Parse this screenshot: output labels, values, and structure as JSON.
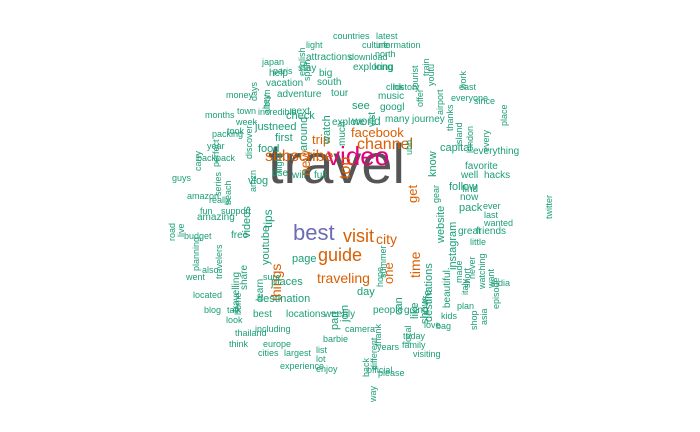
{
  "colors": {
    "grey": "#555555",
    "pink": "#e6007e",
    "purple": "#6b6bb8",
    "orange": "#d95f02",
    "teal": "#1b9e77"
  },
  "words": [
    {
      "text": "travel",
      "color": "grey"
    },
    {
      "text": "video",
      "color": "pink"
    },
    {
      "text": "best",
      "color": "purple"
    },
    {
      "text": "visit",
      "color": "orange"
    },
    {
      "text": "city",
      "color": "orange"
    },
    {
      "text": "guide",
      "color": "orange"
    },
    {
      "text": "channel",
      "color": "orange"
    },
    {
      "text": "subscribe",
      "color": "orange"
    },
    {
      "text": "traveling",
      "color": "orange"
    },
    {
      "text": "facebook",
      "color": "orange"
    },
    {
      "text": "top",
      "color": "orange"
    },
    {
      "text": "trip",
      "color": "orange"
    },
    {
      "text": "things",
      "color": "orange"
    },
    {
      "text": "time",
      "color": "orange"
    },
    {
      "text": "new",
      "color": "orange"
    },
    {
      "text": "get",
      "color": "orange"
    },
    {
      "text": "one",
      "color": "orange"
    },
    {
      "text": "world",
      "color": "teal"
    },
    {
      "text": "watch",
      "color": "teal"
    },
    {
      "text": "see",
      "color": "teal"
    },
    {
      "text": "googl",
      "color": "teal"
    },
    {
      "text": "check",
      "color": "teal"
    },
    {
      "text": "first",
      "color": "teal"
    },
    {
      "text": "food",
      "color": "teal"
    },
    {
      "text": "need",
      "color": "teal"
    },
    {
      "text": "just",
      "color": "teal"
    },
    {
      "text": "around",
      "color": "teal"
    },
    {
      "text": "youtube",
      "color": "teal"
    },
    {
      "text": "tips",
      "color": "teal"
    },
    {
      "text": "vlog",
      "color": "teal"
    },
    {
      "text": "videos",
      "color": "teal"
    },
    {
      "text": "will",
      "color": "teal"
    },
    {
      "text": "full",
      "color": "teal"
    },
    {
      "text": "use",
      "color": "teal"
    },
    {
      "text": "website",
      "color": "teal"
    },
    {
      "text": "instagram",
      "color": "teal"
    },
    {
      "text": "destinations",
      "color": "teal"
    },
    {
      "text": "follow",
      "color": "teal"
    },
    {
      "text": "know",
      "color": "teal"
    },
    {
      "text": "capital",
      "color": "teal"
    },
    {
      "text": "pack",
      "color": "teal"
    },
    {
      "text": "now",
      "color": "teal"
    },
    {
      "text": "life",
      "color": "teal"
    },
    {
      "text": "like",
      "color": "teal"
    },
    {
      "text": "show",
      "color": "teal"
    },
    {
      "text": "can",
      "color": "teal"
    },
    {
      "text": "day",
      "color": "teal"
    },
    {
      "text": "join",
      "color": "teal"
    },
    {
      "text": "part",
      "color": "teal"
    },
    {
      "text": "places",
      "color": "teal"
    },
    {
      "text": "page",
      "color": "teal"
    },
    {
      "text": "destination",
      "color": "teal"
    },
    {
      "text": "best",
      "color": "teal"
    },
    {
      "text": "locations",
      "color": "teal"
    },
    {
      "text": "weebly",
      "color": "teal"
    },
    {
      "text": "people",
      "color": "teal"
    },
    {
      "text": "free",
      "color": "teal"
    },
    {
      "text": "amazing",
      "color": "teal"
    },
    {
      "text": "learn",
      "color": "teal"
    },
    {
      "text": "share",
      "color": "teal"
    },
    {
      "text": "travelling",
      "color": "teal"
    },
    {
      "text": "beautiful",
      "color": "teal"
    },
    {
      "text": "going",
      "color": "teal"
    },
    {
      "text": "great",
      "color": "teal"
    },
    {
      "text": "friends",
      "color": "teal"
    },
    {
      "text": "find",
      "color": "teal"
    },
    {
      "text": "well",
      "color": "teal"
    },
    {
      "text": "hacks",
      "color": "teal"
    },
    {
      "text": "favorite",
      "color": "teal"
    },
    {
      "text": "everything",
      "color": "teal"
    },
    {
      "text": "journey",
      "color": "teal"
    },
    {
      "text": "many",
      "color": "teal"
    },
    {
      "text": "vist",
      "color": "teal"
    },
    {
      "text": "music",
      "color": "teal"
    },
    {
      "text": "explore",
      "color": "teal"
    },
    {
      "text": "next",
      "color": "teal"
    },
    {
      "text": "much",
      "color": "teal"
    },
    {
      "text": "tour",
      "color": "teal"
    },
    {
      "text": "south",
      "color": "teal"
    },
    {
      "text": "adventure",
      "color": "teal"
    },
    {
      "text": "vacation",
      "color": "teal"
    },
    {
      "text": "help",
      "color": "teal"
    },
    {
      "text": "stay",
      "color": "teal"
    },
    {
      "text": "big",
      "color": "teal"
    },
    {
      "text": "attractions",
      "color": "teal"
    },
    {
      "text": "exploring",
      "color": "teal"
    },
    {
      "text": "long",
      "color": "teal"
    },
    {
      "text": "light",
      "color": "teal"
    },
    {
      "text": "countries",
      "color": "teal"
    },
    {
      "text": "culture",
      "color": "teal"
    },
    {
      "text": "latest",
      "color": "teal"
    },
    {
      "text": "information",
      "color": "teal"
    },
    {
      "text": "download",
      "color": "teal"
    },
    {
      "text": "north",
      "color": "teal"
    },
    {
      "text": "history",
      "color": "teal"
    },
    {
      "text": "click",
      "color": "teal"
    },
    {
      "text": "ubb",
      "color": "teal"
    },
    {
      "text": "east",
      "color": "teal"
    },
    {
      "text": "everyone",
      "color": "teal"
    },
    {
      "text": "since",
      "color": "teal"
    },
    {
      "text": "airport",
      "color": "teal"
    },
    {
      "text": "thanks",
      "color": "teal"
    },
    {
      "text": "island",
      "color": "teal"
    },
    {
      "text": "london",
      "color": "teal"
    },
    {
      "text": "every",
      "color": "teal"
    },
    {
      "text": "place",
      "color": "teal"
    },
    {
      "text": "work",
      "color": "teal"
    },
    {
      "text": "offer",
      "color": "teal"
    },
    {
      "text": "youtu",
      "color": "teal"
    },
    {
      "text": "tourist",
      "color": "teal"
    },
    {
      "text": "train",
      "color": "teal"
    },
    {
      "text": "gear",
      "color": "teal"
    },
    {
      "text": "ever",
      "color": "teal"
    },
    {
      "text": "last",
      "color": "teal"
    },
    {
      "text": "wanted",
      "color": "teal"
    },
    {
      "text": "twitter",
      "color": "teal"
    },
    {
      "text": "little",
      "color": "teal"
    },
    {
      "text": "never",
      "color": "teal"
    },
    {
      "text": "watching",
      "color": "teal"
    },
    {
      "text": "made",
      "color": "teal"
    },
    {
      "text": "short",
      "color": "teal"
    },
    {
      "text": "want",
      "color": "teal"
    },
    {
      "text": "italy",
      "color": "teal"
    },
    {
      "text": "india",
      "color": "teal"
    },
    {
      "text": "episode",
      "color": "teal"
    },
    {
      "text": "asia",
      "color": "teal"
    },
    {
      "text": "shop",
      "color": "teal"
    },
    {
      "text": "plan",
      "color": "teal"
    },
    {
      "text": "kids",
      "color": "teal"
    },
    {
      "text": "bag",
      "color": "teal"
    },
    {
      "text": "love",
      "color": "teal"
    },
    {
      "text": "today",
      "color": "teal"
    },
    {
      "text": "family",
      "color": "teal"
    },
    {
      "text": "visiting",
      "color": "teal"
    },
    {
      "text": "years",
      "color": "teal"
    },
    {
      "text": "official",
      "color": "teal"
    },
    {
      "text": "local",
      "color": "teal"
    },
    {
      "text": "thank",
      "color": "teal"
    },
    {
      "text": "different",
      "color": "teal"
    },
    {
      "text": "back",
      "color": "teal"
    },
    {
      "text": "way",
      "color": "teal"
    },
    {
      "text": "please",
      "color": "teal"
    },
    {
      "text": "hope",
      "color": "teal"
    },
    {
      "text": "summer",
      "color": "teal"
    },
    {
      "text": "camera",
      "color": "teal"
    },
    {
      "text": "barbie",
      "color": "teal"
    },
    {
      "text": "list",
      "color": "teal"
    },
    {
      "text": "lot",
      "color": "teal"
    },
    {
      "text": "enjoy",
      "color": "teal"
    },
    {
      "text": "including",
      "color": "teal"
    },
    {
      "text": "europe",
      "color": "teal"
    },
    {
      "text": "cities",
      "color": "teal"
    },
    {
      "text": "largest",
      "color": "teal"
    },
    {
      "text": "experience",
      "color": "teal"
    },
    {
      "text": "thailand",
      "color": "teal"
    },
    {
      "text": "think",
      "color": "teal"
    },
    {
      "text": "look",
      "color": "teal"
    },
    {
      "text": "blog",
      "color": "teal"
    },
    {
      "text": "talk",
      "color": "teal"
    },
    {
      "text": "located",
      "color": "teal"
    },
    {
      "text": "sure",
      "color": "teal"
    },
    {
      "text": "went",
      "color": "teal"
    },
    {
      "text": "home",
      "color": "teal"
    },
    {
      "text": "travelers",
      "color": "teal"
    },
    {
      "text": "also",
      "color": "teal"
    },
    {
      "text": "planning",
      "color": "teal"
    },
    {
      "text": "budget",
      "color": "teal"
    },
    {
      "text": "fun",
      "color": "teal"
    },
    {
      "text": "support",
      "color": "teal"
    },
    {
      "text": "really",
      "color": "teal"
    },
    {
      "text": "amazon",
      "color": "teal"
    },
    {
      "text": "live",
      "color": "teal"
    },
    {
      "text": "road",
      "color": "teal"
    },
    {
      "text": "guys",
      "color": "teal"
    },
    {
      "text": "series",
      "color": "teal"
    },
    {
      "text": "beach",
      "color": "teal"
    },
    {
      "text": "backpack",
      "color": "teal"
    },
    {
      "text": "perfect",
      "color": "teal"
    },
    {
      "text": "year",
      "color": "teal"
    },
    {
      "text": "packing",
      "color": "teal"
    },
    {
      "text": "carry",
      "color": "teal"
    },
    {
      "text": "months",
      "color": "teal"
    },
    {
      "text": "week",
      "color": "teal"
    },
    {
      "text": "town",
      "color": "teal"
    },
    {
      "text": "incredible",
      "color": "teal"
    },
    {
      "text": "money",
      "color": "teal"
    },
    {
      "text": "days",
      "color": "teal"
    },
    {
      "text": "hey",
      "color": "teal"
    },
    {
      "text": "japan",
      "color": "teal"
    },
    {
      "text": "paris",
      "color": "teal"
    },
    {
      "text": "album",
      "color": "teal"
    },
    {
      "text": "english",
      "color": "teal"
    },
    {
      "text": "spain",
      "color": "teal"
    },
    {
      "text": "amzn",
      "color": "teal"
    },
    {
      "text": "discover",
      "color": "teal"
    },
    {
      "text": "took",
      "color": "teal"
    },
    {
      "text": "flight",
      "color": "teal"
    },
    {
      "text": "country",
      "color": "teal"
    },
    {
      "text": "well",
      "color": "teal"
    },
    {
      "text": "take",
      "color": "teal"
    },
    {
      "text": "travel",
      "color": "teal"
    }
  ]
}
